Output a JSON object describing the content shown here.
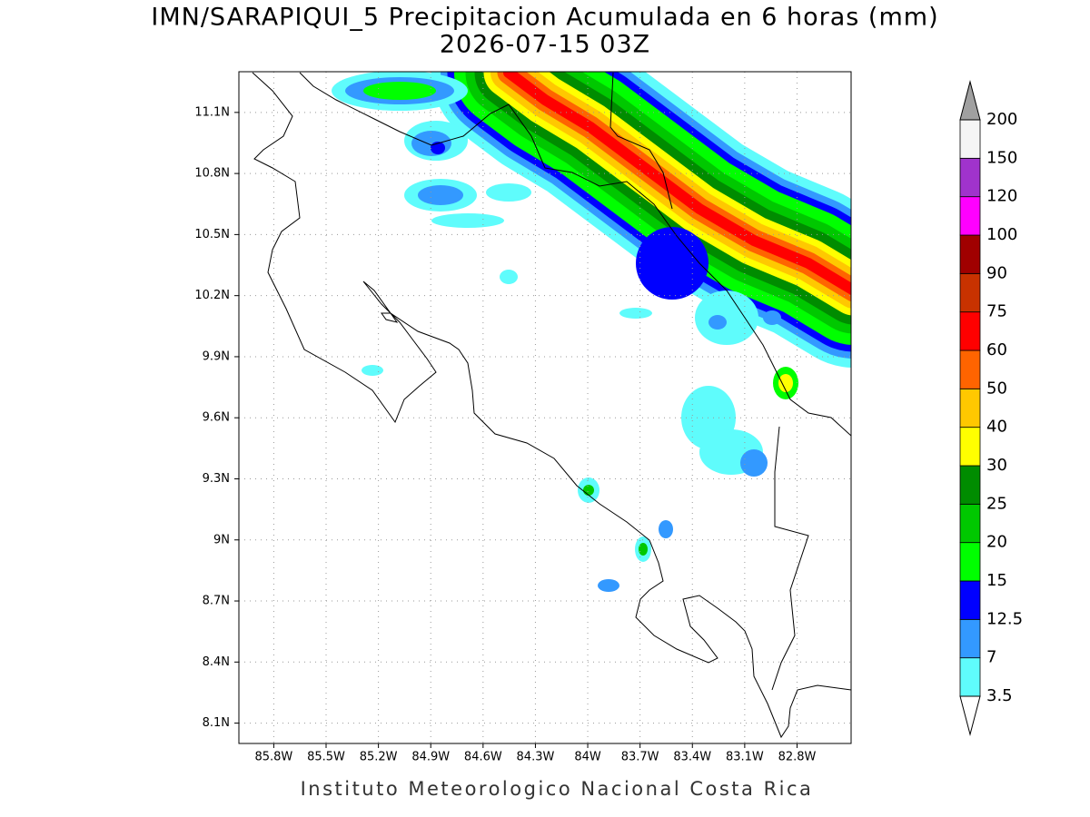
{
  "title": "IMN/SARAPIQUI_5 Precipitacion Acumulada en 6 horas (mm)",
  "subtitle": "2026-07-15 03Z",
  "map": {
    "xlim": [
      -86.0,
      -82.49
    ],
    "ylim": [
      8.0,
      11.3
    ],
    "lon_ticks": [
      {
        "value": -85.8,
        "label": "85.8W"
      },
      {
        "value": -85.5,
        "label": "85.5W"
      },
      {
        "value": -85.2,
        "label": "85.2W"
      },
      {
        "value": -84.9,
        "label": "84.9W"
      },
      {
        "value": -84.6,
        "label": "84.6W"
      },
      {
        "value": -84.3,
        "label": "84.3W"
      },
      {
        "value": -84.0,
        "label": "84W"
      },
      {
        "value": -83.7,
        "label": "83.7W"
      },
      {
        "value": -83.4,
        "label": "83.4W"
      },
      {
        "value": -83.1,
        "label": "83.1W"
      },
      {
        "value": -82.8,
        "label": "82.8W"
      }
    ],
    "lat_ticks": [
      {
        "value": 8.1,
        "label": "8.1N"
      },
      {
        "value": 8.4,
        "label": "8.4N"
      },
      {
        "value": 8.7,
        "label": "8.7N"
      },
      {
        "value": 9.0,
        "label": "9N"
      },
      {
        "value": 9.3,
        "label": "9.3N"
      },
      {
        "value": 9.6,
        "label": "9.6N"
      },
      {
        "value": 9.9,
        "label": "9.9N"
      },
      {
        "value": 10.2,
        "label": "10.2N"
      },
      {
        "value": 10.5,
        "label": "10.5N"
      },
      {
        "value": 10.8,
        "label": "10.8N"
      },
      {
        "value": 11.1,
        "label": "11.1N"
      }
    ],
    "grid": true
  },
  "colorbar": {
    "levels": [
      3.5,
      7,
      12.5,
      15,
      20,
      25,
      30,
      40,
      50,
      60,
      75,
      90,
      100,
      120,
      150,
      200
    ],
    "colors": [
      "#5ffcfc",
      "#3399ff",
      "#0000ff",
      "#00ff00",
      "#00c800",
      "#008c00",
      "#ffff00",
      "#ffc800",
      "#ff6400",
      "#ff0000",
      "#c83200",
      "#a00000",
      "#ff00ff",
      "#a033cc",
      "#f5f5f5"
    ],
    "over_color": "#a0a0a0",
    "under_color": "#ffffff"
  },
  "footer": "Instituto Meteorologico Nacional Costa Rica"
}
